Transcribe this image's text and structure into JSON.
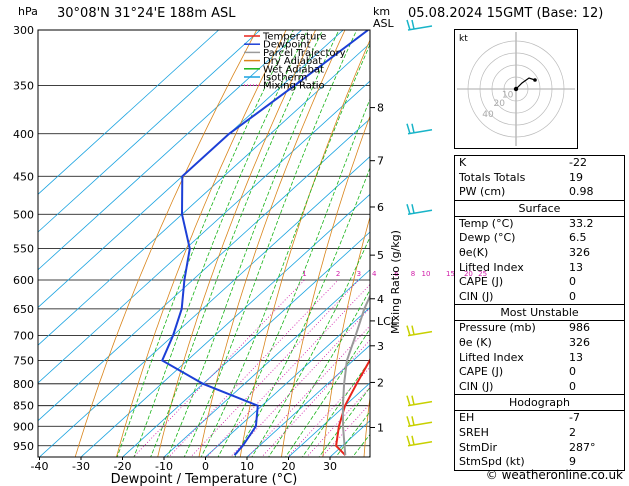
{
  "header": {
    "location": "30°08'N  31°24'E  188m  ASL",
    "datetime": "05.08.2024  15GMT  (Base: 12)",
    "hpa_label": "hPa",
    "km_label": "km",
    "asl_label": "ASL"
  },
  "chart_data": {
    "type": "line",
    "title": "Skew-T log-P diagram",
    "xlabel": "Dewpoint / Temperature (°C)",
    "ylabel": "hPa",
    "y2label": "Mixing Ratio (g/kg)",
    "temp_ticks": [
      "-40",
      "-30",
      "-20",
      "-10",
      "0",
      "10",
      "20",
      "30"
    ],
    "pressure_ticks": [
      "300",
      "350",
      "400",
      "450",
      "500",
      "550",
      "600",
      "650",
      "700",
      "750",
      "800",
      "850",
      "900",
      "950"
    ],
    "km_ticks": [
      "8",
      "7",
      "6",
      "5",
      "4",
      "3",
      "2",
      "1"
    ],
    "km_pressures": [
      372,
      431,
      490,
      560,
      632,
      720,
      797,
      903
    ],
    "lcl_label": "LCL",
    "lcl_pressure": 672,
    "mixing_ratio_labels": [
      "1",
      "2",
      "3",
      "4",
      "6",
      "8",
      "10",
      "15",
      "20",
      "25"
    ],
    "legend": [
      {
        "name": "Temperature",
        "color": "#e8241c"
      },
      {
        "name": "Dewpoint",
        "color": "#1c3fd6"
      },
      {
        "name": "Parcel Trajectory",
        "color": "#9a9a9a"
      },
      {
        "name": "Dry Adiabat",
        "color": "#d9851c"
      },
      {
        "name": "Wet Adiabat",
        "color": "#18b418"
      },
      {
        "name": "Isotherm",
        "color": "#1aa3e0"
      },
      {
        "name": "Mixing Ratio",
        "color": "#d01ca8"
      }
    ],
    "series": [
      {
        "name": "Temperature",
        "color": "#e8241c",
        "points": [
          [
            975,
            33.2
          ],
          [
            950,
            28.5
          ],
          [
            900,
            24
          ],
          [
            850,
            20
          ],
          [
            800,
            17
          ],
          [
            750,
            14
          ],
          [
            700,
            10.5
          ],
          [
            650,
            6.5
          ],
          [
            600,
            2.5
          ],
          [
            550,
            -1.5
          ],
          [
            500,
            -6
          ],
          [
            450,
            -11.5
          ],
          [
            400,
            -19
          ],
          [
            350,
            -29
          ],
          [
            300,
            -39
          ]
        ]
      },
      {
        "name": "Dewpoint",
        "color": "#1c3fd6",
        "points": [
          [
            975,
            6.5
          ],
          [
            950,
            6
          ],
          [
            900,
            4
          ],
          [
            850,
            -1
          ],
          [
            800,
            -20
          ],
          [
            750,
            -36
          ],
          [
            700,
            -40
          ],
          [
            650,
            -45
          ],
          [
            600,
            -52
          ],
          [
            550,
            -59
          ],
          [
            500,
            -70
          ],
          [
            450,
            -80
          ],
          [
            400,
            -80
          ],
          [
            350,
            -77
          ],
          [
            300,
            -74
          ]
        ]
      },
      {
        "name": "Parcel Trajectory",
        "color": "#9a9a9a",
        "points": [
          [
            975,
            33.2
          ],
          [
            900,
            25
          ],
          [
            850,
            19.5
          ],
          [
            800,
            14
          ],
          [
            750,
            8.5
          ],
          [
            700,
            4
          ],
          [
            650,
            -1
          ],
          [
            600,
            -5.5
          ],
          [
            550,
            -11
          ],
          [
            500,
            -17
          ],
          [
            450,
            -24
          ],
          [
            400,
            -32
          ],
          [
            350,
            -40
          ],
          [
            300,
            -47
          ]
        ]
      }
    ]
  },
  "hodograph": {
    "unit_label": "kt",
    "ring_labels": [
      "10",
      "20",
      "40"
    ]
  },
  "indices": [
    {
      "label": "K",
      "value": "-22"
    },
    {
      "label": "Totals Totals",
      "value": "19"
    },
    {
      "label": "PW (cm)",
      "value": "0.98"
    }
  ],
  "surface": {
    "title": "Surface",
    "rows": [
      {
        "label": "Temp (°C)",
        "value": "33.2"
      },
      {
        "label": "Dewp (°C)",
        "value": "6.5"
      },
      {
        "label": "θe(K)",
        "value": "326"
      },
      {
        "label": "Lifted Index",
        "value": "13"
      },
      {
        "label": "CAPE (J)",
        "value": "0"
      },
      {
        "label": "CIN (J)",
        "value": "0"
      }
    ]
  },
  "most_unstable": {
    "title": "Most Unstable",
    "rows": [
      {
        "label": "Pressure (mb)",
        "value": "986"
      },
      {
        "label": "θe (K)",
        "value": "326"
      },
      {
        "label": "Lifted Index",
        "value": "13"
      },
      {
        "label": "CAPE (J)",
        "value": "0"
      },
      {
        "label": "CIN (J)",
        "value": "0"
      }
    ]
  },
  "hodograph_table": {
    "title": "Hodograph",
    "rows": [
      {
        "label": "EH",
        "value": "-7"
      },
      {
        "label": "SREH",
        "value": "2"
      },
      {
        "label": "StmDir",
        "value": "287°"
      },
      {
        "label": "StmSpd (kt)",
        "value": "9"
      }
    ]
  },
  "footer": {
    "copyright": "© weatheronline.co.uk"
  }
}
